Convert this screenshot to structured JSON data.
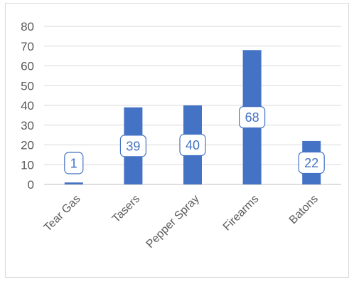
{
  "chart_data": {
    "type": "bar",
    "categories": [
      "Tear Gas",
      "Tasers",
      "Pepper Spray",
      "Firearms",
      "Batons"
    ],
    "values": [
      1,
      39,
      40,
      68,
      22
    ],
    "data_labels": [
      "1",
      "39",
      "40",
      "68",
      "22"
    ],
    "y_ticks": [
      "0",
      "10",
      "20",
      "30",
      "40",
      "50",
      "60",
      "70",
      "80"
    ],
    "ylim": [
      0,
      80
    ],
    "title": "",
    "xlabel": "",
    "ylabel": "",
    "grid": true,
    "legend": "none",
    "colors": {
      "bar": "#4472c4",
      "grid": "#d9d9d9",
      "axis": "#bfbfbf",
      "label_text": "#4472c4",
      "tick_text": "#595959"
    }
  }
}
